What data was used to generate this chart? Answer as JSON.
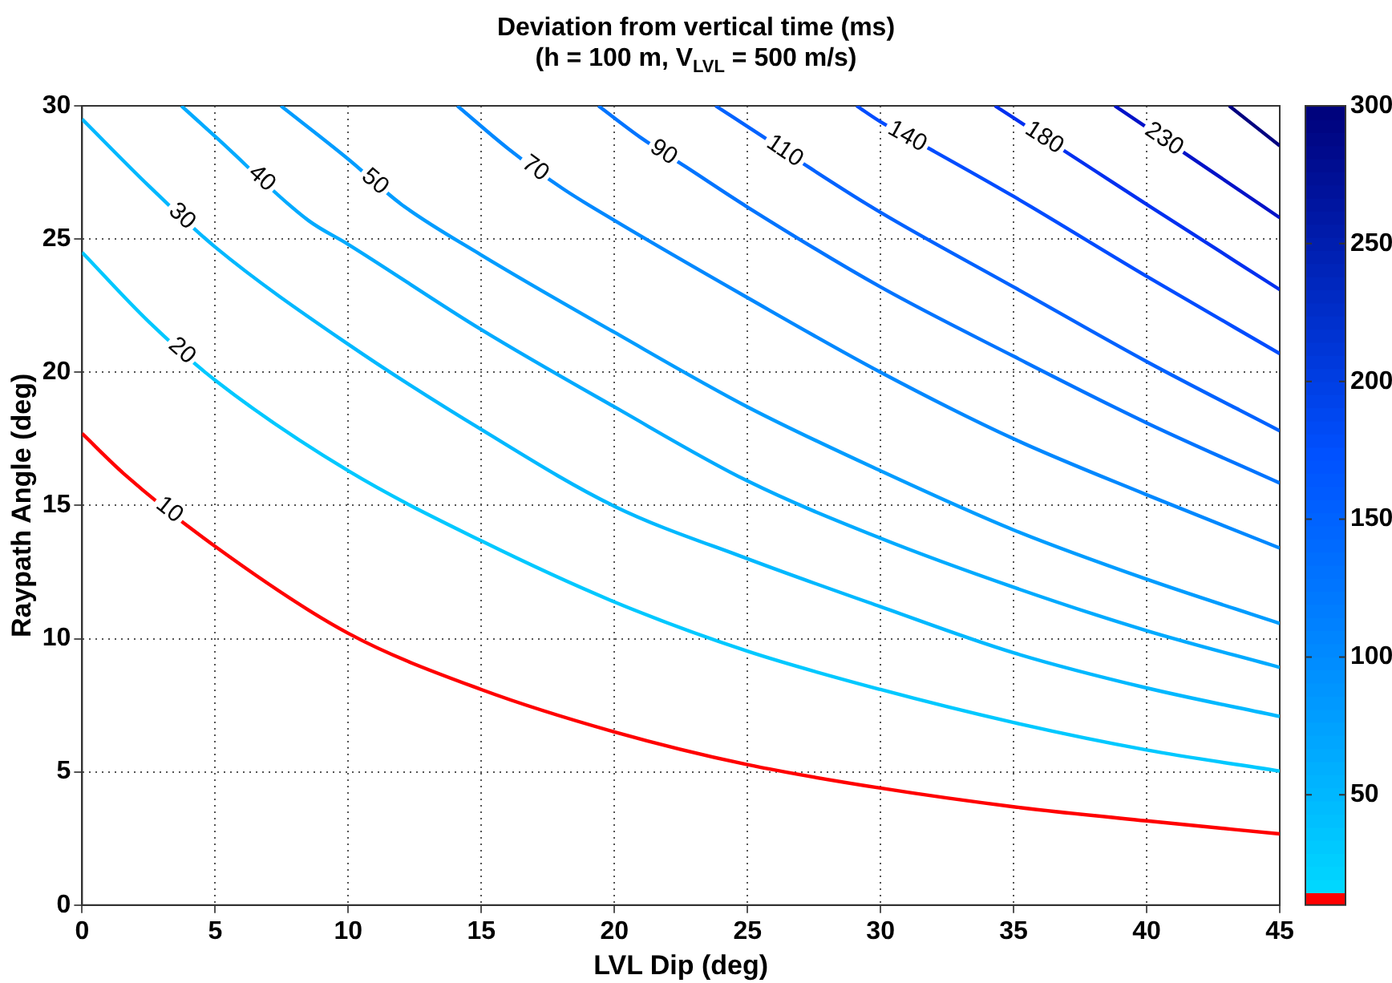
{
  "chart_data": {
    "type": "line",
    "title": "Deviation from vertical time (ms)",
    "subtitle": "(h = 100 m, V$_{LVL}$ = 500 m/s)",
    "xlabel": "LVL Dip (deg)",
    "ylabel": "Raypath Angle (deg)",
    "xlim": [
      0,
      45
    ],
    "xticks": [
      0,
      5,
      10,
      15,
      20,
      25,
      30,
      35,
      40,
      45
    ],
    "ylim": [
      0,
      30
    ],
    "yticks": [
      0,
      5,
      10,
      15,
      20,
      25,
      30
    ],
    "grid": true,
    "legend": false,
    "marker": "none",
    "line_style": "solid",
    "clim": [
      10,
      300
    ],
    "cticks": [
      50,
      100,
      150,
      200,
      250,
      300
    ],
    "series": [
      {
        "name": "10",
        "color": "#ff0000",
        "x": [
          0,
          1.56,
          5,
          10,
          15,
          20,
          25,
          30,
          35,
          40,
          45
        ],
        "values": [
          17.7,
          16.2,
          13.46,
          10.2,
          8.09,
          6.5,
          5.27,
          4.39,
          3.69,
          3.16,
          2.67
        ]
      },
      {
        "name": "20",
        "color": "#00c8ff",
        "x": [
          0,
          2.5,
          5,
          10,
          15,
          20,
          25,
          30,
          35,
          40,
          45
        ],
        "values": [
          24.5,
          21.9,
          19.7,
          16.3,
          13.67,
          11.38,
          9.53,
          8.09,
          6.85,
          5.82,
          5.03
        ]
      },
      {
        "name": "30",
        "color": "#00b8ff",
        "x": [
          0,
          2.5,
          5,
          10,
          15,
          20,
          25,
          30,
          35,
          40,
          45
        ],
        "values": [
          29.5,
          27.0,
          24.7,
          21.05,
          17.85,
          14.97,
          13.0,
          11.2,
          9.47,
          8.15,
          7.08
        ]
      },
      {
        "name": "40",
        "color": "#00aaff",
        "x": [
          3.73,
          5,
          8.5,
          10,
          15,
          20,
          25,
          30,
          35,
          40,
          45
        ],
        "values": [
          30,
          28.85,
          25.7,
          24.8,
          21.6,
          18.7,
          15.92,
          13.77,
          11.93,
          10.3,
          8.92
        ]
      },
      {
        "name": "50",
        "color": "#009cff",
        "x": [
          7.47,
          10,
          12,
          15,
          20,
          25,
          30,
          35,
          40,
          45
        ],
        "values": [
          30,
          28.0,
          26.3,
          24.4,
          21.5,
          18.7,
          16.3,
          14.08,
          12.23,
          10.57
        ]
      },
      {
        "name": "70",
        "color": "#0088ff",
        "x": [
          14.1,
          16,
          18.05,
          20,
          25,
          30,
          35,
          40,
          45
        ],
        "values": [
          30,
          28.4,
          26.9,
          25.7,
          22.8,
          20.0,
          17.5,
          15.4,
          13.4
        ]
      },
      {
        "name": "90",
        "color": "#0074ff",
        "x": [
          19.4,
          21,
          22.7,
          25,
          30,
          35,
          40,
          45
        ],
        "values": [
          30,
          28.8,
          27.7,
          26.2,
          23.2,
          20.6,
          18.1,
          15.84
        ]
      },
      {
        "name": "110",
        "color": "#0062ff",
        "x": [
          23.8,
          25.5,
          27.3,
          30,
          35,
          40,
          45
        ],
        "values": [
          30,
          28.9,
          27.7,
          26.0,
          23.2,
          20.4,
          17.8
        ]
      },
      {
        "name": "140",
        "color": "#004cff",
        "x": [
          29.1,
          30,
          32,
          35,
          40,
          45
        ],
        "values": [
          30,
          29.4,
          28.3,
          26.6,
          23.6,
          20.7
        ]
      },
      {
        "name": "180",
        "color": "#0030f0",
        "x": [
          34.3,
          38,
          40,
          45
        ],
        "values": [
          30,
          27.6,
          26.3,
          23.1
        ]
      },
      {
        "name": "230",
        "color": "#0012c8",
        "x": [
          38.8,
          42.5,
          45
        ],
        "values": [
          30,
          27.5,
          25.8
        ]
      },
      {
        "color": "#000080",
        "x": [
          43.1,
          45
        ],
        "values": [
          30,
          28.5
        ]
      }
    ]
  }
}
